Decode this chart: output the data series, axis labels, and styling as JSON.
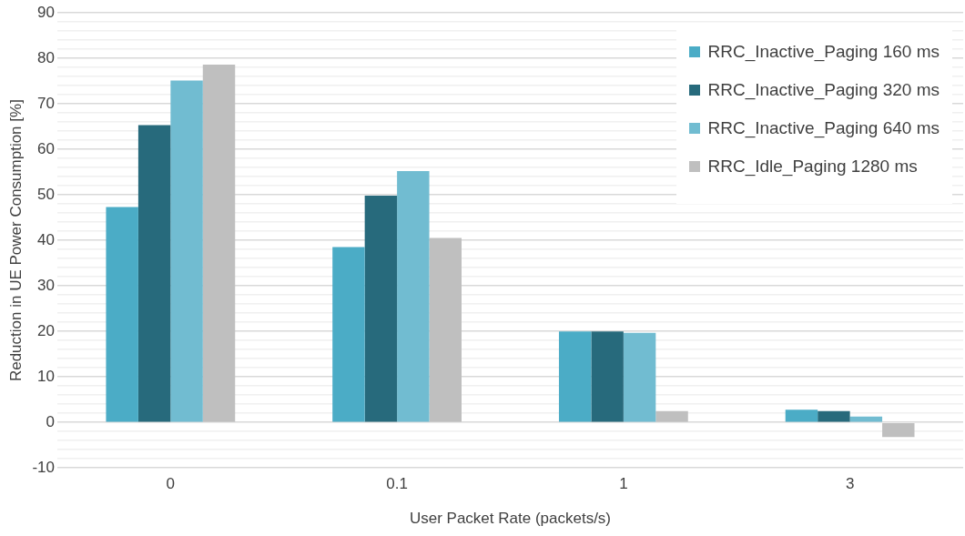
{
  "chart_data": {
    "type": "bar",
    "xlabel": "User Packet Rate (packets/s)",
    "ylabel": "Reduction in UE Power Consumption [%]",
    "categories": [
      "0",
      "0.1",
      "1",
      "3"
    ],
    "series": [
      {
        "name": "RRC_Inactive_Paging 160 ms",
        "color": "#4bacc6",
        "values": [
          47.3,
          38.5,
          20,
          2.8
        ]
      },
      {
        "name": "RRC_Inactive_Paging 320 ms",
        "color": "#276a7c",
        "values": [
          65.3,
          49.8,
          20,
          2.5
        ]
      },
      {
        "name": "RRC_Inactive_Paging 640 ms",
        "color": "#71bcd1",
        "values": [
          75.1,
          55.2,
          19.7,
          1.3
        ]
      },
      {
        "name": "RRC_Idle_Paging 1280 ms",
        "color": "#bfbfbf",
        "values": [
          78.6,
          40.5,
          2.5,
          -3.2
        ]
      }
    ],
    "ylim": [
      -10,
      90
    ],
    "yticks": [
      -10,
      {
        "value": -8,
        "label": null
      },
      {
        "value": -6,
        "label": null
      },
      {
        "value": -4,
        "label": null
      },
      {
        "value": -2,
        "label": null
      },
      0,
      {
        "value": 2,
        "label": null
      },
      {
        "value": 4,
        "label": null
      },
      {
        "value": 6,
        "label": null
      },
      {
        "value": 8,
        "label": null
      },
      10,
      {
        "value": 12,
        "label": null
      },
      {
        "value": 14,
        "label": null
      },
      {
        "value": 16,
        "label": null
      },
      {
        "value": 18,
        "label": null
      },
      20,
      {
        "value": 22,
        "label": null
      },
      {
        "value": 24,
        "label": null
      },
      {
        "value": 26,
        "label": null
      },
      {
        "value": 28,
        "label": null
      },
      30,
      {
        "value": 32,
        "label": null
      },
      {
        "value": 34,
        "label": null
      },
      {
        "value": 36,
        "label": null
      },
      {
        "value": 38,
        "label": null
      },
      40,
      {
        "value": 42,
        "label": null
      },
      {
        "value": 44,
        "label": null
      },
      {
        "value": 46,
        "label": null
      },
      {
        "value": 48,
        "label": null
      },
      50,
      {
        "value": 52,
        "label": null
      },
      {
        "value": 54,
        "label": null
      },
      {
        "value": 56,
        "label": null
      },
      {
        "value": 58,
        "label": null
      },
      60,
      {
        "value": 62,
        "label": null
      },
      {
        "value": 64,
        "label": null
      },
      {
        "value": 66,
        "label": null
      },
      {
        "value": 68,
        "label": null
      },
      70,
      {
        "value": 72,
        "label": null
      },
      {
        "value": 74,
        "label": null
      },
      {
        "value": 76,
        "label": null
      },
      {
        "value": 78,
        "label": null
      },
      80,
      {
        "value": 82,
        "label": null
      },
      {
        "value": 84,
        "label": null
      },
      {
        "value": 86,
        "label": null
      },
      {
        "value": 88,
        "label": null
      },
      90
    ],
    "grid": "y",
    "legend": "top right"
  }
}
